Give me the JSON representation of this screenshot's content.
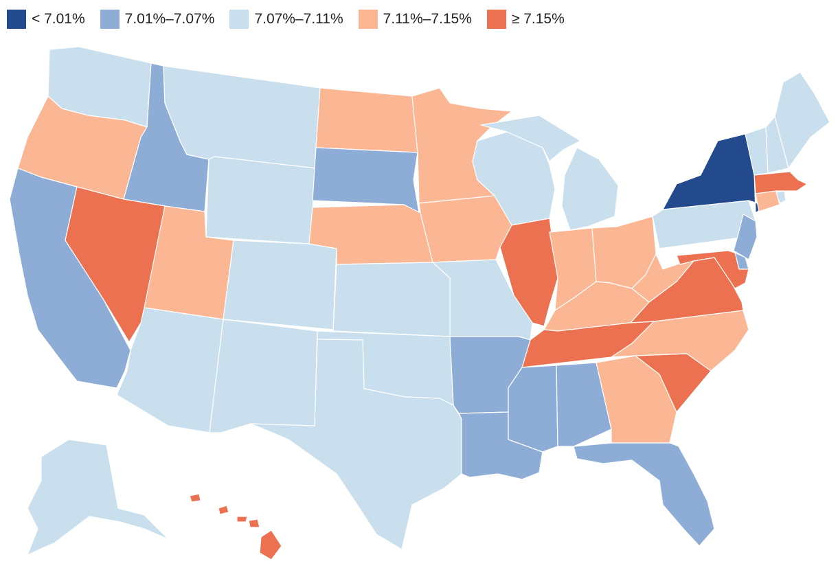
{
  "legend": {
    "items": [
      {
        "key": "c1",
        "label": "< 7.01%",
        "color": "#244a8e"
      },
      {
        "key": "c2",
        "label": "7.01%–7.07%",
        "color": "#8eadd6"
      },
      {
        "key": "c3",
        "label": "7.07%–7.11%",
        "color": "#c9dfee"
      },
      {
        "key": "c4",
        "label": "7.11%–7.15%",
        "color": "#fbb694"
      },
      {
        "key": "c5",
        "label": "≥ 7.15%",
        "color": "#eb7150"
      }
    ]
  },
  "states": {
    "WA": "c3",
    "OR": "c4",
    "CA": "c2",
    "ID": "c2",
    "NV": "c5",
    "MT": "c3",
    "WY": "c3",
    "UT": "c4",
    "AZ": "c3",
    "CO": "c3",
    "NM": "c3",
    "ND": "c4",
    "SD": "c2",
    "NE": "c4",
    "KS": "c3",
    "OK": "c3",
    "TX": "c3",
    "MN": "c4",
    "IA": "c4",
    "MO": "c3",
    "AR": "c2",
    "LA": "c2",
    "WI": "c3",
    "IL": "c5",
    "MI": "c3",
    "IN": "c4",
    "OH": "c4",
    "KY": "c4",
    "TN": "c5",
    "MS": "c2",
    "AL": "c2",
    "GA": "c4",
    "FL": "c2",
    "SC": "c5",
    "NC": "c4",
    "VA": "c5",
    "WV": "c4",
    "PA": "c3",
    "NY": "c1",
    "VT": "c3",
    "NH": "c3",
    "ME": "c3",
    "MA": "c5",
    "CT": "c4",
    "RI": "c3",
    "NJ": "c2",
    "DE": "c2",
    "MD": "c5",
    "AK": "c3",
    "HI": "c5"
  }
}
